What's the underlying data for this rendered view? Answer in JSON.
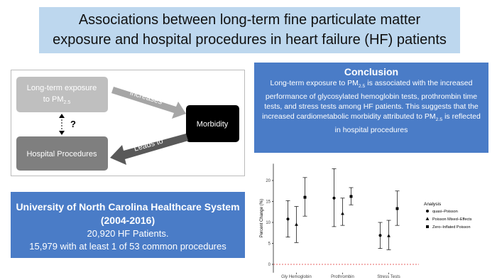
{
  "title": {
    "lines": [
      "Associations between long-term fine particulate matter",
      "exposure and hospital procedures in heart failure (HF) patients"
    ]
  },
  "diagram": {
    "exposure": [
      "Long-term exposure",
      "to PM",
      "2.5"
    ],
    "increases": "increases",
    "morbidity": "Morbidity",
    "question": "?",
    "leads_to": "Leads to",
    "procedures": "Hospital Procedures"
  },
  "conclusion": {
    "heading": "Conclusion",
    "body": [
      "Long-term exposure to PM",
      "2.5",
      " is associated with the increased performance of glycosylated hemoglobin tests, prothrombin time tests, and stress tests among HF patients. This suggests that the increased cardiometabolic morbidity attributed to PM",
      "2.5",
      " is reflected in hospital procedures"
    ]
  },
  "cohort": {
    "heading": [
      "University of North Carolina Healthcare System",
      "(2004-2016)"
    ],
    "lines": [
      "20,920 HF Patients.",
      "15,979 with at least 1 of 53 common procedures"
    ]
  },
  "chart_data": {
    "type": "errorbar",
    "y_label": "Percent Change (%)",
    "categories": [
      "Gly Hemoglobin",
      "Prothrombin",
      "Stress Tests"
    ],
    "ylim": [
      -2,
      24
    ],
    "yticks": [
      0,
      5,
      10,
      15,
      20
    ],
    "reference_line": 0,
    "reference_color": "#e03030",
    "legend_title": "Analysis",
    "series": [
      {
        "name": "quasi–Poisson",
        "marker": "circle",
        "color": "#000000",
        "values": [
          10.8,
          15.8,
          6.9
        ],
        "lower": [
          6.5,
          9.0,
          3.8
        ],
        "upper": [
          15.2,
          22.8,
          10.0
        ]
      },
      {
        "name": "Poisson Mixed–Effects",
        "marker": "triangle",
        "color": "#000000",
        "values": [
          9.5,
          12.1,
          6.8
        ],
        "lower": [
          5.2,
          9.3,
          3.5
        ],
        "upper": [
          13.8,
          15.8,
          10.5
        ]
      },
      {
        "name": "Zero–Inflated Poisson",
        "marker": "square",
        "color": "#000000",
        "values": [
          16.0,
          16.2,
          13.3
        ],
        "lower": [
          11.5,
          14.2,
          9.3
        ],
        "upper": [
          20.7,
          18.3,
          17.5
        ]
      }
    ]
  }
}
